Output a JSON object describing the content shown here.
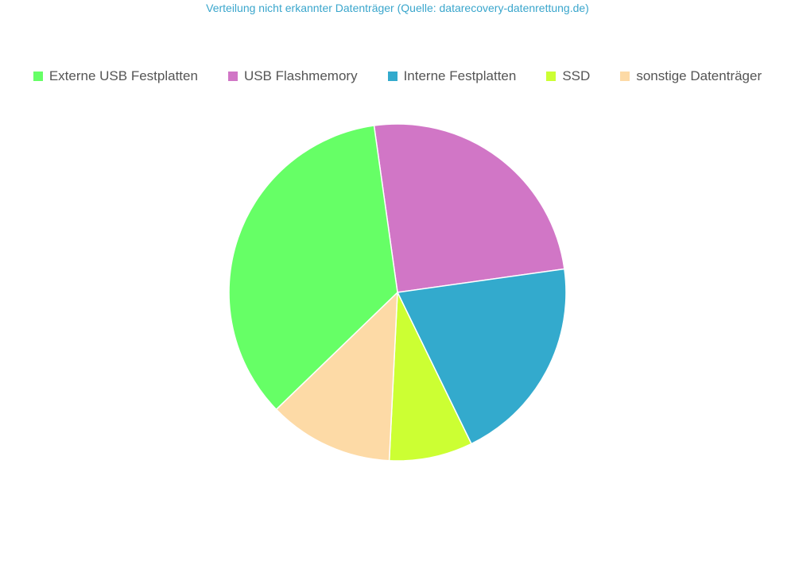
{
  "chart_data": {
    "type": "pie",
    "title": "Verteilung nicht erkannter Datenträger (Quelle: datarecovery-datenrettung.de)",
    "legend_position": "top",
    "start_angle_deg": -8,
    "slices": [
      {
        "name": "USB Flashmemory",
        "value": 25,
        "color": "#d176c6"
      },
      {
        "name": "Interne Festplatten",
        "value": 20,
        "color": "#33aacd"
      },
      {
        "name": "SSD",
        "value": 8,
        "color": "#ccff33"
      },
      {
        "name": "sonstige Datenträger",
        "value": 12,
        "color": "#fddaa6"
      },
      {
        "name": "Externe USB Festplatten",
        "value": 35,
        "color": "#66ff66"
      }
    ],
    "legend_order": [
      "Externe USB Festplatten",
      "USB Flashmemory",
      "Interne Festplatten",
      "SSD",
      "sonstige Datenträger"
    ]
  }
}
